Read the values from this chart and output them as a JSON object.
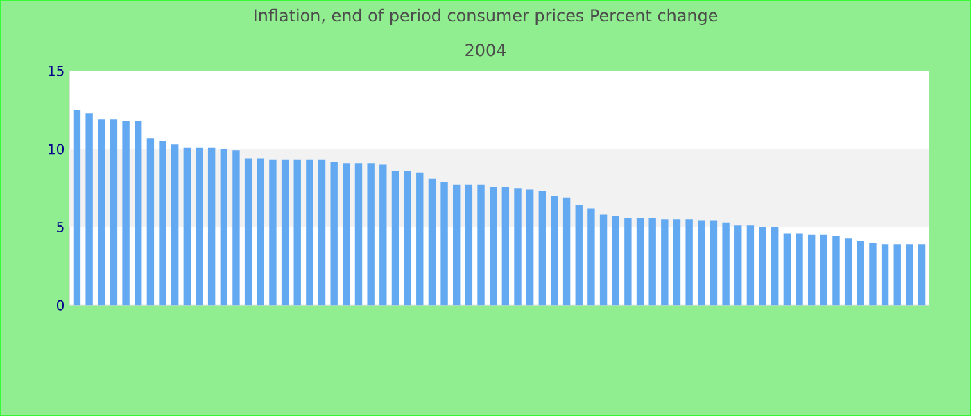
{
  "chart_data": {
    "type": "bar",
    "title": "Inflation, end of period consumer prices  Percent change",
    "subtitle": "2004",
    "categories": [
      null,
      null,
      null,
      null,
      null,
      null,
      null,
      null,
      null,
      null,
      null,
      null,
      null,
      null,
      null,
      null,
      null,
      null,
      null,
      null,
      null,
      null,
      null,
      null,
      null,
      null,
      null,
      null,
      null,
      null,
      null,
      null,
      null,
      null,
      null,
      null,
      null,
      null,
      null,
      null,
      null,
      null,
      null,
      null,
      null,
      null,
      null,
      null,
      null,
      null,
      null,
      null,
      null,
      null,
      null,
      null,
      null,
      null,
      null,
      null,
      null,
      null,
      null,
      null,
      null,
      null,
      null,
      null,
      null,
      null
    ],
    "values": [
      12.5,
      12.3,
      11.9,
      11.9,
      11.8,
      11.8,
      10.7,
      10.5,
      10.3,
      10.1,
      10.1,
      10.1,
      10.0,
      9.9,
      9.4,
      9.4,
      9.3,
      9.3,
      9.3,
      9.3,
      9.3,
      9.2,
      9.1,
      9.1,
      9.1,
      9.0,
      8.6,
      8.6,
      8.5,
      8.1,
      7.9,
      7.7,
      7.7,
      7.7,
      7.6,
      7.6,
      7.5,
      7.4,
      7.3,
      7.0,
      6.9,
      6.4,
      6.2,
      5.8,
      5.7,
      5.6,
      5.6,
      5.6,
      5.5,
      5.5,
      5.5,
      5.4,
      5.4,
      5.3,
      5.1,
      5.1,
      5.0,
      5.0,
      4.6,
      4.6,
      4.5,
      4.5,
      4.4,
      4.3,
      4.1,
      4.0,
      3.9,
      3.9,
      3.9,
      3.9
    ],
    "color": "#63a9f2",
    "ylim": [
      0,
      15
    ],
    "yticks": [
      0,
      5,
      10,
      15
    ],
    "bands": [
      {
        "axis": "y",
        "from": 5,
        "to": 10,
        "color": "#f2f2f2"
      }
    ]
  }
}
